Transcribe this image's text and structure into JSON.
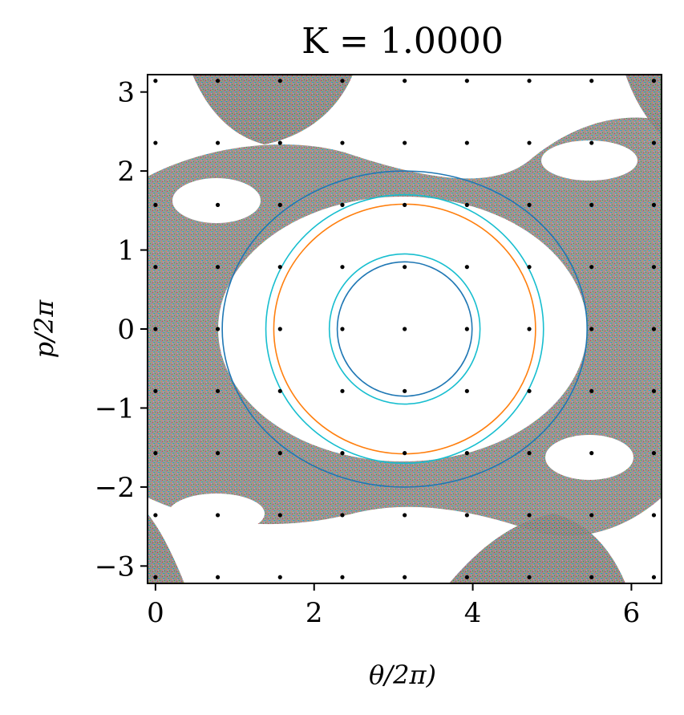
{
  "chart_data": {
    "type": "scatter",
    "title": "K = 1.0000",
    "xlabel": "θ/2π)",
    "ylabel": "p/2π",
    "xlim": [
      -0.1,
      6.38
    ],
    "ylim": [
      -3.22,
      3.22
    ],
    "xticks": [
      0,
      2,
      4,
      6
    ],
    "yticks": [
      3,
      2,
      1,
      0,
      -1,
      -2,
      -3
    ],
    "xtick_labels": [
      "0",
      "2",
      "4",
      "6"
    ],
    "ytick_labels": [
      "3",
      "2",
      "1",
      "0",
      "−1",
      "−2",
      "−3"
    ],
    "grid": false,
    "plot_style": "standard map Poincaré section: chaotic sea of multicolored points with regular invariant curves",
    "chaotic_region_colors": [
      "#1f77b4",
      "#ff7f0e",
      "#2ca02c",
      "#d62728",
      "#9467bd",
      "#8c564b",
      "#e377c2",
      "#7f7f7f",
      "#bcbd22",
      "#17becf"
    ],
    "invariant_curves": [
      {
        "cx": 3.14159,
        "cy": 0,
        "rx": 0.85,
        "ry": 0.85,
        "color": "#1f77b4"
      },
      {
        "cx": 3.14159,
        "cy": 0,
        "rx": 0.95,
        "ry": 0.95,
        "color": "#17becf"
      },
      {
        "cx": 3.14159,
        "cy": 0,
        "rx": 1.65,
        "ry": 1.58,
        "color": "#ff7f0e"
      },
      {
        "cx": 3.14159,
        "cy": 0,
        "rx": 1.75,
        "ry": 1.7,
        "color": "#17becf"
      },
      {
        "cx": 3.14159,
        "cy": 0,
        "rx": 2.3,
        "ry": 2.0,
        "color": "#1f77b4"
      }
    ],
    "grid_points": {
      "x": [
        0,
        0.7854,
        1.5708,
        2.3562,
        3.1416,
        3.927,
        4.7124,
        5.4978,
        6.2832
      ],
      "y": [
        -3.1416,
        -2.3562,
        -1.5708,
        -0.7854,
        0,
        0.7854,
        1.5708,
        2.3562,
        3.1416
      ],
      "color": "#000000"
    }
  }
}
